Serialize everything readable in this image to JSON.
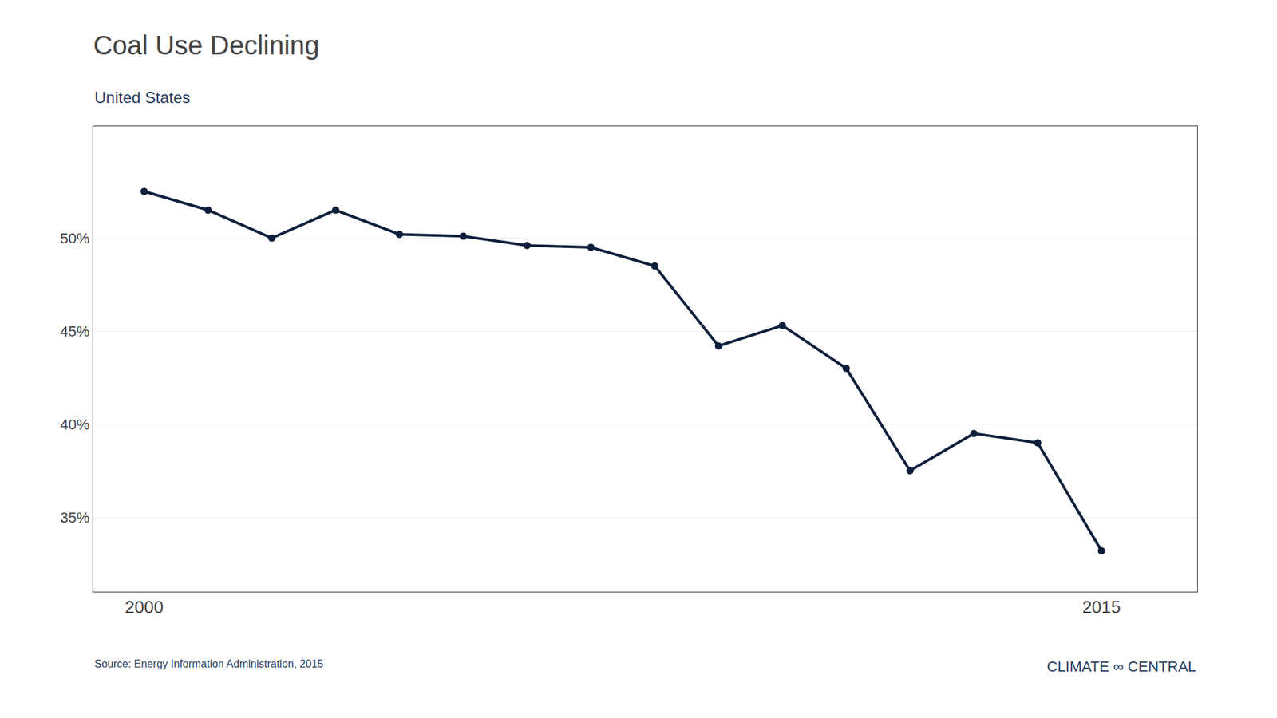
{
  "chart_data": {
    "type": "line",
    "title": "Coal Use Declining",
    "subtitle": "United States",
    "annotations": [
      "Source: Energy Information Administration, 2015",
      "CLIMATE ∞ CENTRAL"
    ],
    "x": [
      2000,
      2001,
      2002,
      2003,
      2004,
      2005,
      2006,
      2007,
      2008,
      2009,
      2010,
      2011,
      2012,
      2013,
      2014,
      2015
    ],
    "values": [
      52.5,
      51.5,
      50.0,
      51.5,
      50.2,
      50.1,
      49.6,
      49.5,
      48.5,
      44.2,
      45.3,
      43.0,
      37.5,
      39.5,
      39.0,
      33.2
    ],
    "color": "#0d1f3c",
    "marker": "circle",
    "xlim": [
      1999.2,
      2016.5
    ],
    "xticks": [
      2000,
      2015
    ],
    "ylim": [
      31.0,
      56.0
    ],
    "yticks": [
      {
        "value": 35,
        "label": "35%"
      },
      {
        "value": 40,
        "label": "40%"
      },
      {
        "value": 45,
        "label": "45%"
      },
      {
        "value": 50,
        "label": "50%"
      }
    ],
    "grid": true
  }
}
